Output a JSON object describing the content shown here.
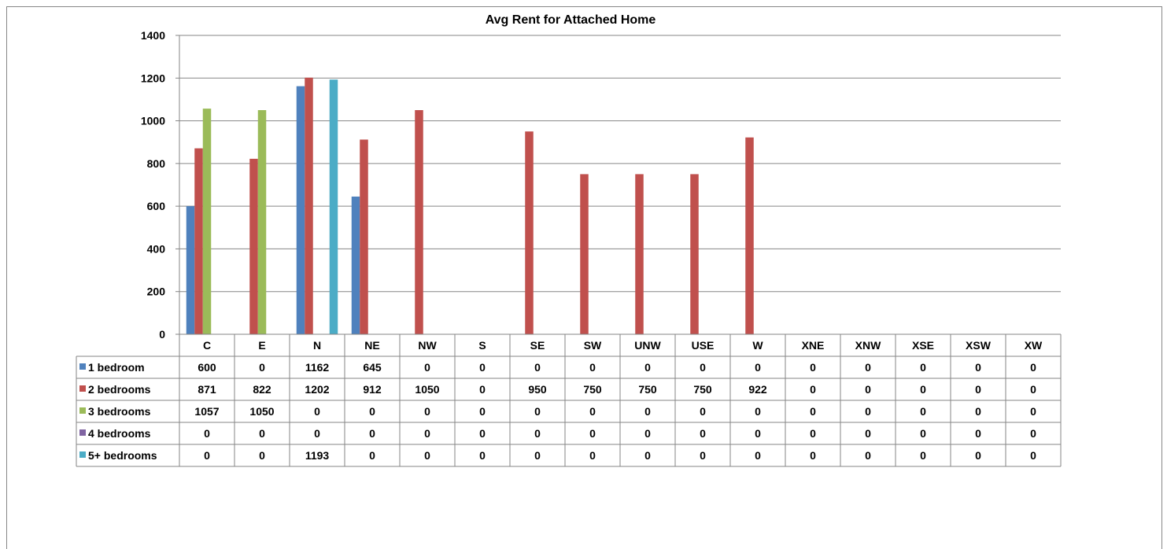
{
  "chart_data": {
    "type": "bar",
    "title": "Avg Rent for Attached Home",
    "xlabel": "",
    "ylabel": "",
    "ylim": [
      0,
      1400
    ],
    "yticks": [
      "0",
      "200",
      "400",
      "600",
      "800",
      "1000",
      "1200",
      "1400"
    ],
    "grid": true,
    "legend": "data-table",
    "categories": [
      "C",
      "E",
      "N",
      "NE",
      "NW",
      "S",
      "SE",
      "SW",
      "UNW",
      "USE",
      "W",
      "XNE",
      "XNW",
      "XSE",
      "XSW",
      "XW"
    ],
    "series": [
      {
        "name": "1 bedroom",
        "color": "#4F81BD",
        "values": [
          600,
          0,
          1162,
          645,
          0,
          0,
          0,
          0,
          0,
          0,
          0,
          0,
          0,
          0,
          0,
          0
        ]
      },
      {
        "name": "2 bedrooms",
        "color": "#C0504D",
        "values": [
          871,
          822,
          1202,
          912,
          1050,
          0,
          950,
          750,
          750,
          750,
          922,
          0,
          0,
          0,
          0,
          0
        ]
      },
      {
        "name": "3 bedrooms",
        "color": "#9BBB59",
        "values": [
          1057,
          1050,
          0,
          0,
          0,
          0,
          0,
          0,
          0,
          0,
          0,
          0,
          0,
          0,
          0,
          0
        ]
      },
      {
        "name": "4 bedrooms",
        "color": "#8064A2",
        "values": [
          0,
          0,
          0,
          0,
          0,
          0,
          0,
          0,
          0,
          0,
          0,
          0,
          0,
          0,
          0,
          0
        ]
      },
      {
        "name": "5+ bedrooms",
        "color": "#4BACC6",
        "values": [
          0,
          0,
          1193,
          0,
          0,
          0,
          0,
          0,
          0,
          0,
          0,
          0,
          0,
          0,
          0,
          0
        ]
      }
    ]
  }
}
